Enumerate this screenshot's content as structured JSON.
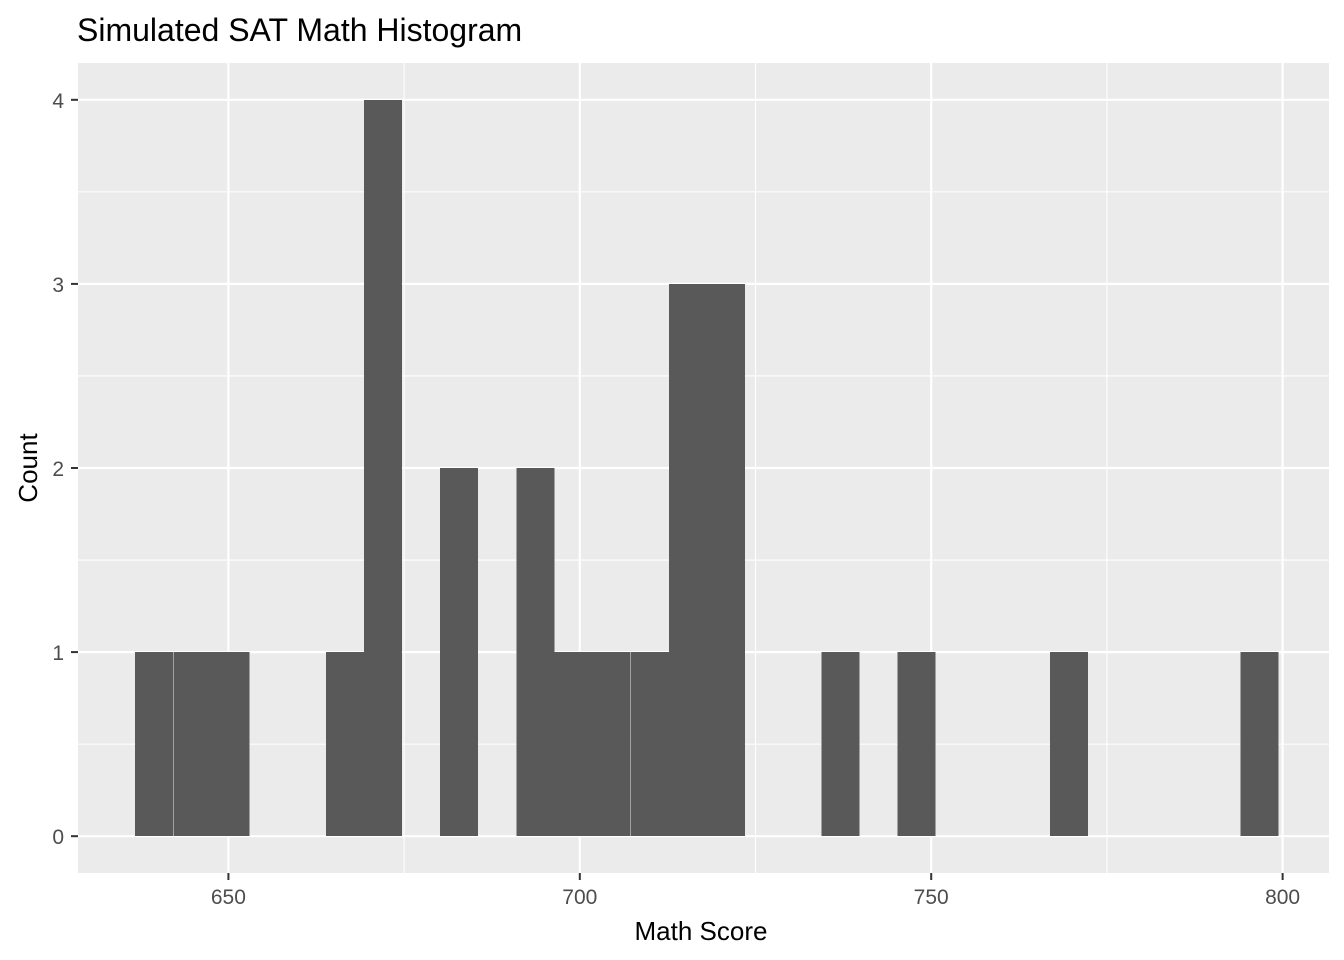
{
  "chart_data": {
    "type": "bar",
    "title": "Simulated SAT Math Histogram",
    "xlabel": "Math Score",
    "ylabel": "Count",
    "xlim": [
      628.6,
      806.6
    ],
    "ylim": [
      -0.2,
      4.2
    ],
    "x_ticks": [
      650,
      700,
      750,
      800
    ],
    "y_ticks": [
      0,
      1,
      2,
      3,
      4
    ],
    "bin_width": 5.424,
    "bins": [
      {
        "start": 636.7,
        "count": 1
      },
      {
        "start": 642.2,
        "count": 1
      },
      {
        "start": 647.6,
        "count": 1
      },
      {
        "start": 663.9,
        "count": 1
      },
      {
        "start": 669.3,
        "count": 4
      },
      {
        "start": 680.1,
        "count": 2
      },
      {
        "start": 691.0,
        "count": 2
      },
      {
        "start": 696.4,
        "count": 1
      },
      {
        "start": 701.8,
        "count": 1
      },
      {
        "start": 707.3,
        "count": 1
      },
      {
        "start": 712.7,
        "count": 3
      },
      {
        "start": 718.1,
        "count": 3
      },
      {
        "start": 734.4,
        "count": 1
      },
      {
        "start": 745.2,
        "count": 1
      },
      {
        "start": 766.9,
        "count": 1
      },
      {
        "start": 794.0,
        "count": 1
      }
    ],
    "grid": true,
    "colors": {
      "panel": "#EBEBEB",
      "gridline": "#FFFFFF",
      "bar": "#595959",
      "tick_text": "#4D4D4D"
    }
  }
}
